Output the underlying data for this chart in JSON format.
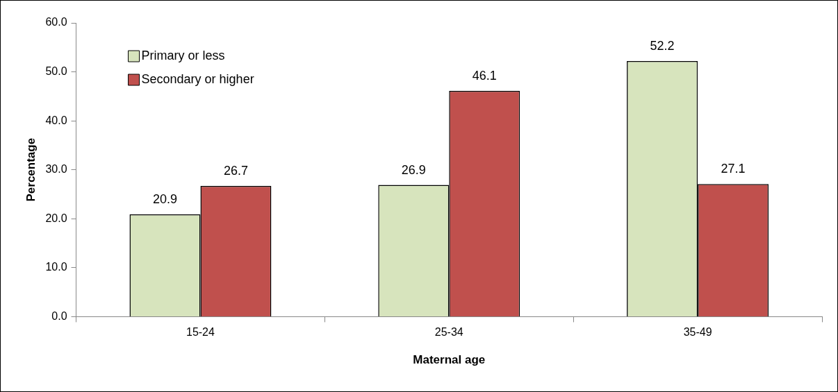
{
  "chart_data": {
    "type": "bar",
    "xlabel": "Maternal age",
    "ylabel": "Percentage",
    "categories": [
      "15-24",
      "25-34",
      "35-49"
    ],
    "series": [
      {
        "name": "Primary or less",
        "color": "#d7e4bd",
        "values": [
          20.9,
          26.9,
          52.2
        ]
      },
      {
        "name": "Secondary or higher",
        "color": "#c0504d",
        "values": [
          26.7,
          46.1,
          27.1
        ]
      }
    ],
    "ylim": [
      0,
      60
    ],
    "yticks": [
      {
        "value": 0,
        "label": "0.0"
      },
      {
        "value": 10,
        "label": "10.0"
      },
      {
        "value": 20,
        "label": "20.0"
      },
      {
        "value": 30,
        "label": "30.0"
      },
      {
        "value": 40,
        "label": "40.0"
      },
      {
        "value": 50,
        "label": "50.0"
      },
      {
        "value": 60,
        "label": "60.0"
      }
    ],
    "data_labels": true,
    "grid": false,
    "legend": "top left"
  }
}
